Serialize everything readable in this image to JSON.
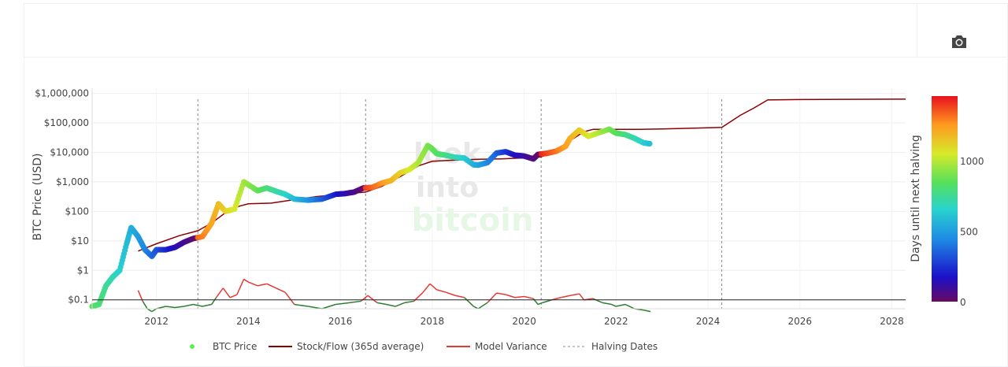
{
  "toolbar": {
    "screenshot_icon": "camera-icon"
  },
  "watermark": {
    "line1": "look",
    "line2": "into",
    "line3": "bitcoin"
  },
  "chart_data": {
    "type": "scatter",
    "title": "",
    "xlabel": "",
    "ylabel": "BTC Price (USD)",
    "y_scale": "log",
    "ylim": [
      0.05,
      1500000
    ],
    "xlim": [
      2010.6,
      2028.3
    ],
    "x_ticks": [
      "2012",
      "2014",
      "2016",
      "2018",
      "2020",
      "2022",
      "2024",
      "2026",
      "2028"
    ],
    "y_ticks": [
      "$0.1",
      "$1",
      "$10",
      "$100",
      "$1,000",
      "$10,000",
      "$100,000",
      "$1,000,000"
    ],
    "grid": true,
    "legend_position": "bottom",
    "colorbar": {
      "title": "Days until next halving",
      "ticks": [
        "0",
        "500",
        "1000"
      ],
      "range": [
        0,
        1460
      ],
      "colorscale": "jet"
    },
    "halving_dates": [
      2012.9,
      2016.55,
      2020.37,
      2024.3
    ],
    "series": [
      {
        "name": "BTC Price",
        "mode": "markers",
        "x": [
          2010.6,
          2010.75,
          2010.9,
          2011.05,
          2011.2,
          2011.35,
          2011.45,
          2011.6,
          2011.75,
          2011.9,
          2012.0,
          2012.2,
          2012.4,
          2012.6,
          2012.8,
          2013.0,
          2013.2,
          2013.35,
          2013.5,
          2013.7,
          2013.9,
          2014.0,
          2014.2,
          2014.4,
          2014.6,
          2014.8,
          2015.0,
          2015.3,
          2015.6,
          2015.9,
          2016.1,
          2016.3,
          2016.5,
          2016.7,
          2016.9,
          2017.1,
          2017.3,
          2017.5,
          2017.7,
          2017.9,
          2017.98,
          2018.1,
          2018.3,
          2018.5,
          2018.7,
          2018.9,
          2019.0,
          2019.2,
          2019.4,
          2019.6,
          2019.8,
          2020.0,
          2020.2,
          2020.3,
          2020.5,
          2020.7,
          2020.9,
          2021.0,
          2021.2,
          2021.4,
          2021.6,
          2021.85,
          2022.0,
          2022.2,
          2022.4,
          2022.6,
          2022.75
        ],
        "y": [
          0.06,
          0.07,
          0.3,
          0.6,
          1.0,
          8,
          28,
          14,
          5,
          3,
          5,
          5,
          6,
          9,
          12,
          14,
          40,
          180,
          100,
          120,
          1000,
          800,
          500,
          620,
          480,
          380,
          260,
          240,
          260,
          380,
          400,
          450,
          620,
          650,
          900,
          1100,
          2000,
          2600,
          4500,
          17000,
          14000,
          9000,
          8000,
          6800,
          6400,
          3800,
          3700,
          4500,
          9500,
          10500,
          8000,
          7500,
          6000,
          8500,
          9300,
          11000,
          16000,
          30000,
          57000,
          35000,
          45000,
          61000,
          45000,
          40000,
          30000,
          21000,
          19500
        ]
      },
      {
        "name": "Stock/Flow (365d average)",
        "mode": "line",
        "x": [
          2011.6,
          2012.0,
          2012.5,
          2012.9,
          2013.2,
          2013.5,
          2013.8,
          2014.0,
          2014.5,
          2015.0,
          2015.5,
          2016.0,
          2016.55,
          2016.9,
          2017.3,
          2017.7,
          2018.0,
          2018.5,
          2019.0,
          2019.5,
          2020.0,
          2020.37,
          2020.7,
          2021.0,
          2021.3,
          2021.5,
          2022.0,
          2022.5,
          2023.0,
          2023.5,
          2024.0,
          2024.3,
          2024.7,
          2025.0,
          2025.3,
          2026.0,
          2027.0,
          2028.3
        ],
        "y": [
          4.5,
          8,
          15,
          22,
          40,
          90,
          150,
          180,
          190,
          250,
          320,
          380,
          450,
          700,
          1500,
          3500,
          5000,
          5500,
          5800,
          6000,
          6500,
          7000,
          12000,
          25000,
          50000,
          60000,
          60000,
          60000,
          62000,
          65000,
          68000,
          70000,
          180000,
          320000,
          600000,
          620000,
          630000,
          640000
        ]
      },
      {
        "name": "Model Variance",
        "mode": "line",
        "x": [
          2011.6,
          2011.7,
          2011.8,
          2011.9,
          2012.0,
          2012.2,
          2012.4,
          2012.6,
          2012.8,
          2013.0,
          2013.2,
          2013.3,
          2013.45,
          2013.6,
          2013.75,
          2013.9,
          2014.0,
          2014.2,
          2014.4,
          2014.6,
          2014.8,
          2015.0,
          2015.3,
          2015.6,
          2015.9,
          2016.2,
          2016.45,
          2016.6,
          2016.8,
          2017.0,
          2017.2,
          2017.4,
          2017.6,
          2017.8,
          2017.95,
          2018.1,
          2018.3,
          2018.5,
          2018.7,
          2018.9,
          2019.0,
          2019.2,
          2019.4,
          2019.6,
          2019.8,
          2020.0,
          2020.2,
          2020.3,
          2020.4,
          2020.6,
          2020.8,
          2021.0,
          2021.2,
          2021.3,
          2021.5,
          2021.7,
          2021.9,
          2022.0,
          2022.2,
          2022.4,
          2022.6,
          2022.75
        ],
        "y": [
          0.21,
          0.09,
          0.05,
          0.04,
          0.05,
          0.06,
          0.055,
          0.06,
          0.07,
          0.06,
          0.07,
          0.12,
          0.25,
          0.12,
          0.15,
          0.5,
          0.4,
          0.3,
          0.35,
          0.25,
          0.18,
          0.07,
          0.06,
          0.05,
          0.07,
          0.08,
          0.09,
          0.14,
          0.08,
          0.07,
          0.06,
          0.08,
          0.09,
          0.18,
          0.35,
          0.22,
          0.18,
          0.14,
          0.12,
          0.06,
          0.05,
          0.08,
          0.17,
          0.15,
          0.12,
          0.13,
          0.11,
          0.07,
          0.08,
          0.1,
          0.12,
          0.14,
          0.16,
          0.1,
          0.11,
          0.08,
          0.07,
          0.06,
          0.07,
          0.05,
          0.045,
          0.04
        ]
      },
      {
        "name": "Halving Dates",
        "mode": "vlines-dashed"
      }
    ],
    "reference_line": {
      "y": 0.1
    },
    "legend": [
      "BTC Price",
      "Stock/Flow (365d average)",
      "Model Variance",
      "Halving Dates"
    ],
    "colors": {
      "stock_flow": "#8b0000",
      "variance_high": "#e53935",
      "variance_low": "#2e7d32",
      "legend_price": "#5ef04a",
      "halving": "#888888"
    }
  }
}
